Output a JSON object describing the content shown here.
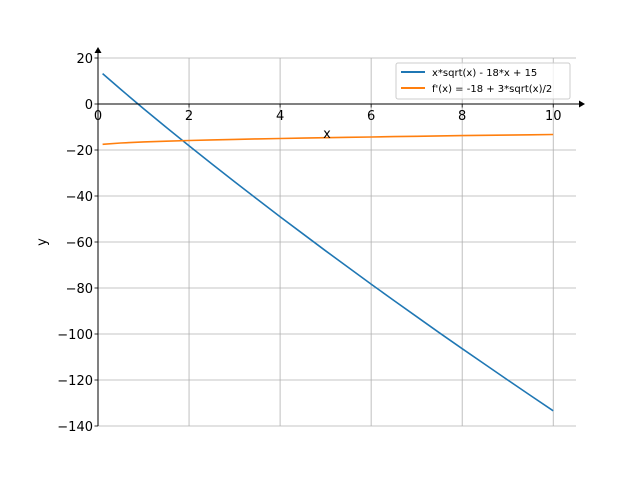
{
  "chart_data": {
    "type": "line",
    "title": "",
    "xlabel": "x",
    "ylabel": "y",
    "xlim": [
      0,
      10.5
    ],
    "ylim": [
      -140,
      20
    ],
    "grid": true,
    "legend_position": "top-right",
    "xticks": [
      0,
      2,
      4,
      6,
      8,
      10
    ],
    "xtick_labels": [
      "0",
      "2",
      "4",
      "6",
      "8",
      "10"
    ],
    "yticks": [
      20,
      0,
      -20,
      -40,
      -60,
      -80,
      -100,
      -120,
      -140
    ],
    "ytick_labels": [
      "20",
      "0",
      "−20",
      "−40",
      "−60",
      "−80",
      "−100",
      "−120",
      "−140"
    ],
    "x": [
      0.1,
      0.5,
      1,
      1.5,
      2,
      2.5,
      3,
      3.5,
      4,
      4.5,
      5,
      5.5,
      6,
      6.5,
      7,
      7.5,
      8,
      8.5,
      9,
      9.5,
      10
    ],
    "series": [
      {
        "name": "x*sqrt(x) - 18*x + 15",
        "color": "#1f77b4",
        "values": [
          13.23,
          6.35,
          -2,
          -10.16,
          -18.17,
          -26.05,
          -33.8,
          -41.45,
          -49,
          -56.45,
          -63.82,
          -71.1,
          -78.3,
          -85.43,
          -92.48,
          -99.46,
          -106.37,
          -113.22,
          -120,
          -126.72,
          -133.38
        ]
      },
      {
        "name": "f'(x) = -18 + 3*sqrt(x)/2",
        "color": "#ff7f0e",
        "values": [
          -17.53,
          -16.94,
          -16.5,
          -16.16,
          -15.88,
          -15.63,
          -15.4,
          -15.19,
          -15,
          -14.82,
          -14.65,
          -14.48,
          -14.33,
          -14.18,
          -14.03,
          -13.89,
          -13.76,
          -13.63,
          -13.5,
          -13.38,
          -13.26
        ]
      }
    ]
  }
}
